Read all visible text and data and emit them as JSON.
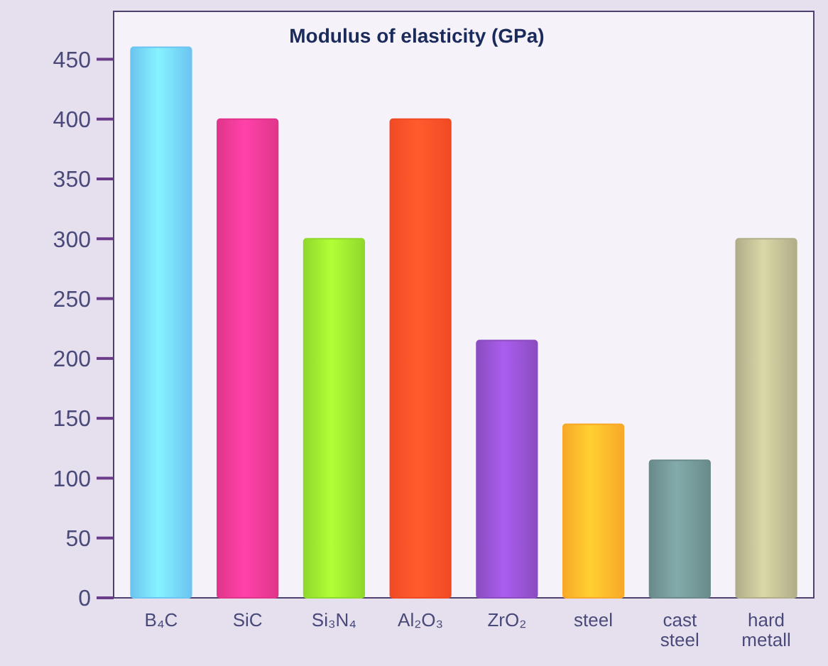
{
  "chart_data": {
    "type": "bar",
    "title": "Modulus of elasticity (GPa)",
    "categories": [
      "B₄C",
      "SiC",
      "Si₃N₄",
      "Al₂O₃",
      "ZrO₂",
      "steel",
      "cast steel",
      "hard metall"
    ],
    "values": [
      460,
      400,
      300,
      400,
      215,
      145,
      115,
      300
    ],
    "colors": [
      "#6cc4f0",
      "#e0358a",
      "#8fd82c",
      "#f04a24",
      "#8a4cc0",
      "#f8a828",
      "#6a8a8a",
      "#b0ae88"
    ],
    "ylim": [
      0,
      490
    ],
    "yticks": [
      0,
      50,
      100,
      150,
      200,
      250,
      300,
      350,
      400,
      450
    ],
    "grid": false
  }
}
